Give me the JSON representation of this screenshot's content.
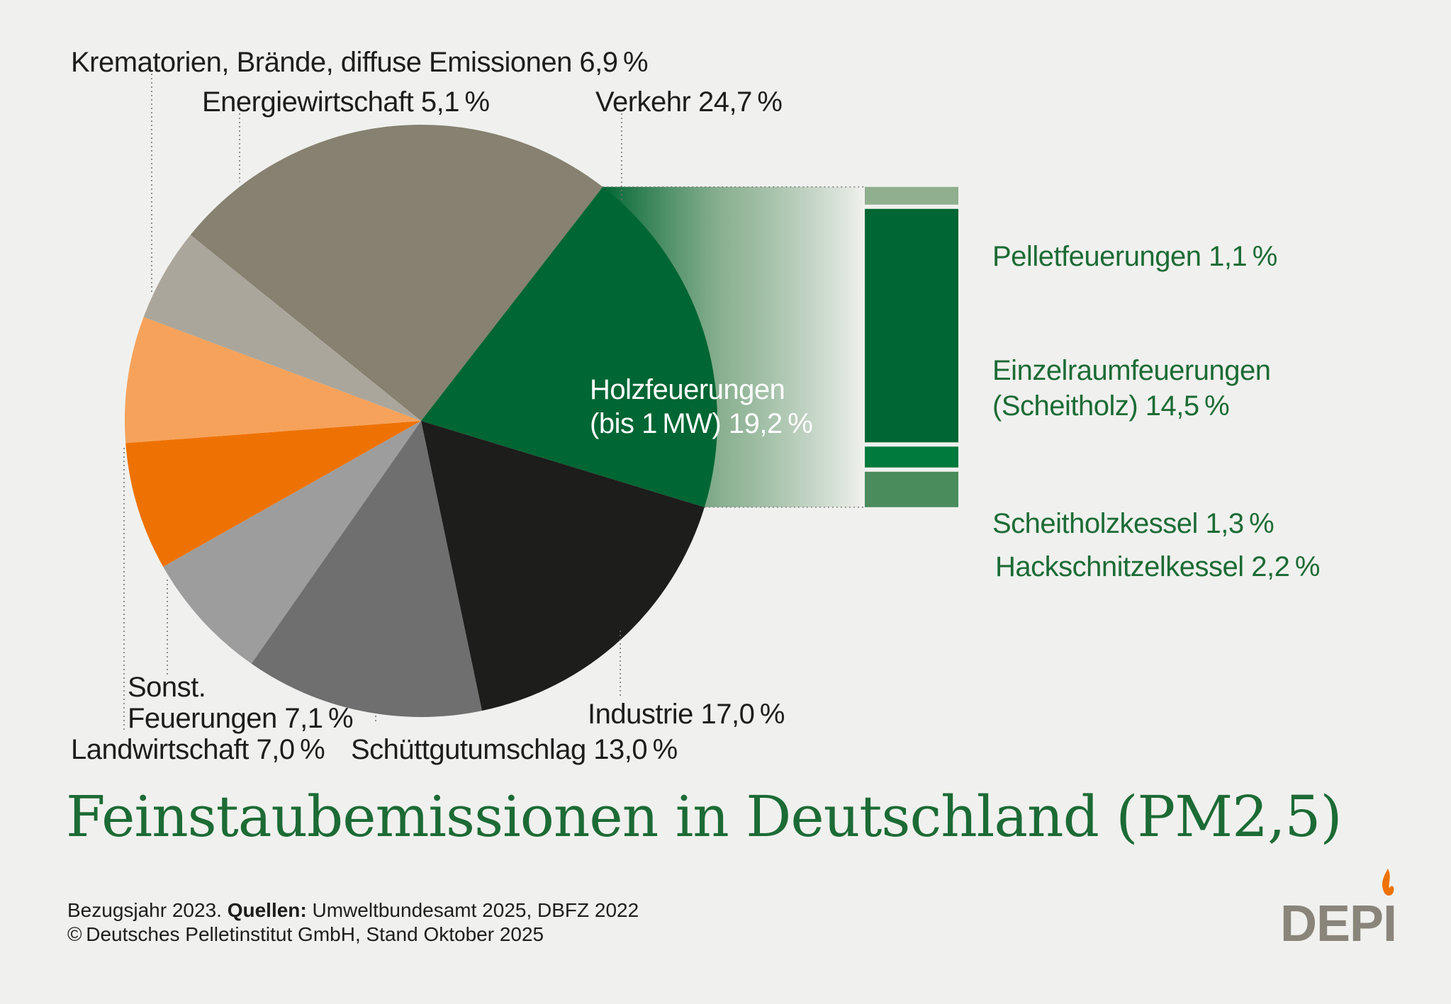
{
  "chart_data": {
    "type": "pie",
    "title": "Feinstaubemissionen in Deutschland (PM2,5)",
    "slices": [
      {
        "label": "Verkehr",
        "value": 24.7,
        "display": "Verkehr 24,7 %",
        "color": "#868170"
      },
      {
        "label": "Holzfeuerungen (bis 1 MW)",
        "value": 19.2,
        "display_line1": "Holzfeuerungen",
        "display_line2": "(bis 1 MW) 19,2 %",
        "color": "#006633"
      },
      {
        "label": "Industrie",
        "value": 17.0,
        "display": "Industrie 17,0 %",
        "color": "#1d1d1b"
      },
      {
        "label": "Schüttgutumschlag",
        "value": 13.0,
        "display": "Schüttgutumschlag 13,0 %",
        "color": "#6f6f6f"
      },
      {
        "label": "Sonst. Feuerungen",
        "value": 7.1,
        "display_line1": "Sonst.",
        "display_line2": "Feuerungen 7,1 %",
        "color": "#9d9d9d"
      },
      {
        "label": "Landwirtschaft",
        "value": 7.0,
        "display": "Landwirtschaft 7,0 %",
        "color": "#ee7203"
      },
      {
        "label": "Krematorien, Brände, diffuse Emissionen",
        "value": 6.9,
        "display": "Krematorien, Brände, diffuse Emissionen 6,9 %",
        "color": "#f6a25b"
      },
      {
        "label": "Energiewirtschaft",
        "value": 5.1,
        "display": "Energiewirtschaft 5,1 %",
        "color": "#aba69b"
      }
    ],
    "breakdown": {
      "parent": "Holzfeuerungen (bis 1 MW)",
      "items": [
        {
          "label": "Pelletfeuerungen",
          "value": 1.1,
          "display": "Pelletfeuerungen 1,1 %",
          "color": "#8faf8f"
        },
        {
          "label": "Einzelraumfeuerungen (Scheitholz)",
          "value": 14.5,
          "display_line1": "Einzelraumfeuerungen",
          "display_line2": "(Scheitholz) 14,5 %",
          "color": "#006633"
        },
        {
          "label": "Scheitholzkessel",
          "value": 1.3,
          "display": "Scheitholzkessel 1,3 %",
          "color": "#007a3d"
        },
        {
          "label": "Hackschnitzelkessel",
          "value": 2.2,
          "display": "Hackschnitzelkessel 2,2 %",
          "color": "#4a8c5c"
        }
      ]
    }
  },
  "footer": {
    "line1_prefix": "Bezugsjahr 2023. ",
    "line1_bold": "Quellen:",
    "line1_rest": " Umweltbundesamt 2025, DBFZ 2022",
    "line2": "© Deutsches Pelletinstitut GmbH, Stand Oktober 2025"
  },
  "logo": {
    "text": "DEPI",
    "flame_color": "#ee7203"
  }
}
